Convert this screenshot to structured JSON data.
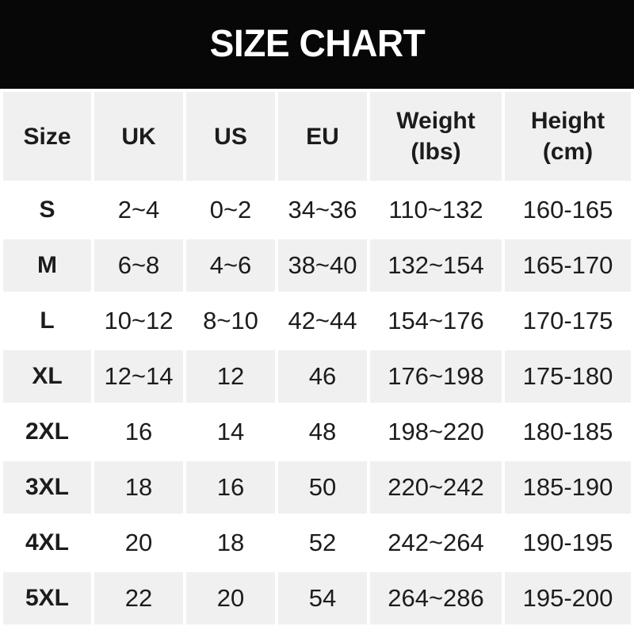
{
  "banner": {
    "title": "SIZE CHART"
  },
  "colors": {
    "banner_bg": "#070707",
    "banner_text": "#ffffff",
    "cell_alt_bg": "#f1f0f0",
    "row_bg": "#ffffff",
    "text": "#1c1c1c"
  },
  "size_chart": {
    "columns": [
      {
        "id": "size",
        "label": "Size",
        "sub_label": ""
      },
      {
        "id": "uk",
        "label": "UK",
        "sub_label": ""
      },
      {
        "id": "us",
        "label": "US",
        "sub_label": ""
      },
      {
        "id": "eu",
        "label": "EU",
        "sub_label": ""
      },
      {
        "id": "weight",
        "label": "Weight",
        "sub_label": "(lbs)"
      },
      {
        "id": "height",
        "label": "Height",
        "sub_label": "(cm)"
      }
    ],
    "rows": [
      {
        "size": "S",
        "uk": "2~4",
        "us": "0~2",
        "eu": "34~36",
        "weight": "110~132",
        "height": "160-165"
      },
      {
        "size": "M",
        "uk": "6~8",
        "us": "4~6",
        "eu": "38~40",
        "weight": "132~154",
        "height": "165-170"
      },
      {
        "size": "L",
        "uk": "10~12",
        "us": "8~10",
        "eu": "42~44",
        "weight": "154~176",
        "height": "170-175"
      },
      {
        "size": "XL",
        "uk": "12~14",
        "us": "12",
        "eu": "46",
        "weight": "176~198",
        "height": "175-180"
      },
      {
        "size": "2XL",
        "uk": "16",
        "us": "14",
        "eu": "48",
        "weight": "198~220",
        "height": "180-185"
      },
      {
        "size": "3XL",
        "uk": "18",
        "us": "16",
        "eu": "50",
        "weight": "220~242",
        "height": "185-190"
      },
      {
        "size": "4XL",
        "uk": "20",
        "us": "18",
        "eu": "52",
        "weight": "242~264",
        "height": "190-195"
      },
      {
        "size": "5XL",
        "uk": "22",
        "us": "20",
        "eu": "54",
        "weight": "264~286",
        "height": "195-200"
      }
    ]
  },
  "chart_data": {
    "type": "table",
    "title": "SIZE CHART",
    "columns": [
      "Size",
      "UK",
      "US",
      "EU",
      "Weight (lbs)",
      "Height (cm)"
    ],
    "rows": [
      [
        "S",
        "2~4",
        "0~2",
        "34~36",
        "110~132",
        "160-165"
      ],
      [
        "M",
        "6~8",
        "4~6",
        "38~40",
        "132~154",
        "165-170"
      ],
      [
        "L",
        "10~12",
        "8~10",
        "42~44",
        "154~176",
        "170-175"
      ],
      [
        "XL",
        "12~14",
        "12",
        "46",
        "176~198",
        "175-180"
      ],
      [
        "2XL",
        "16",
        "14",
        "48",
        "198~220",
        "180-185"
      ],
      [
        "3XL",
        "18",
        "16",
        "50",
        "220~242",
        "185-190"
      ],
      [
        "4XL",
        "20",
        "18",
        "52",
        "242~264",
        "190-195"
      ],
      [
        "5XL",
        "22",
        "20",
        "54",
        "264~286",
        "195-200"
      ]
    ]
  }
}
